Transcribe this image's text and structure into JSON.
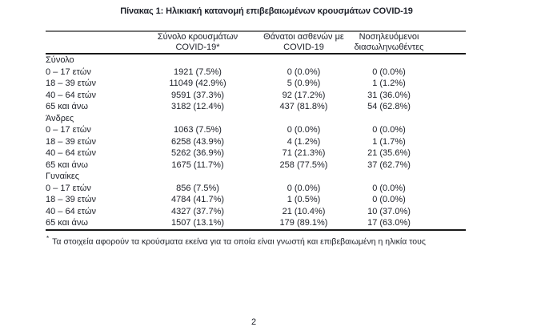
{
  "title": "Πίνακας 1: Ηλικιακή κατανομή επιβεβαιωμένων κρουσμάτων COVID-19",
  "colors": {
    "text": "#20232b",
    "rule_top": "#767676",
    "rule_black": "#1a1a1a",
    "background": "#ffffff"
  },
  "table": {
    "headers": [
      {
        "line1": "Σύνολο κρουσμάτων",
        "line2": "COVID-19*"
      },
      {
        "line1": "Θάνατοι ασθενών με",
        "line2": "COVID-19"
      },
      {
        "line1": "Νοσηλευόμενοι",
        "line2": "διασωληνωθέντες"
      }
    ],
    "groups": [
      {
        "label": "Σύνολο",
        "rows": [
          {
            "label": "0 – 17 ετών",
            "cases": "1921 (7.5%)",
            "deaths": "0 (0.0%)",
            "intubated": "0 (0.0%)"
          },
          {
            "label": "18 – 39 ετών",
            "cases": "11049 (42.9%)",
            "deaths": "5 (0.9%)",
            "intubated": "1 (1.2%)"
          },
          {
            "label": "40 – 64 ετών",
            "cases": "9591 (37.3%)",
            "deaths": "92 (17.2%)",
            "intubated": "31 (36.0%)"
          },
          {
            "label": "65 και άνω",
            "cases": "3182 (12.4%)",
            "deaths": "437 (81.8%)",
            "intubated": "54 (62.8%)"
          }
        ]
      },
      {
        "label": "Άνδρες",
        "rows": [
          {
            "label": "0 – 17 ετών",
            "cases": "1063 (7.5%)",
            "deaths": "0 (0.0%)",
            "intubated": "0 (0.0%)"
          },
          {
            "label": "18 – 39 ετών",
            "cases": "6258 (43.9%)",
            "deaths": "4 (1.2%)",
            "intubated": "1 (1.7%)"
          },
          {
            "label": "40 – 64 ετών",
            "cases": "5262 (36.9%)",
            "deaths": "71 (21.3%)",
            "intubated": "21 (35.6%)"
          },
          {
            "label": "65 και άνω",
            "cases": "1675 (11.7%)",
            "deaths": "258 (77.5%)",
            "intubated": "37 (62.7%)"
          }
        ]
      },
      {
        "label": "Γυναίκες",
        "rows": [
          {
            "label": "0 – 17 ετών",
            "cases": "856 (7.5%)",
            "deaths": "0 (0.0%)",
            "intubated": "0 (0.0%)"
          },
          {
            "label": "18 – 39 ετών",
            "cases": "4784 (41.7%)",
            "deaths": "1 (0.5%)",
            "intubated": "0 (0.0%)"
          },
          {
            "label": "40 – 64 ετών",
            "cases": "4327 (37.7%)",
            "deaths": "21 (10.4%)",
            "intubated": "10 (37.0%)"
          },
          {
            "label": "65 και άνω",
            "cases": "1507 (13.1%)",
            "deaths": "179 (89.1%)",
            "intubated": "17 (63.0%)"
          }
        ]
      }
    ]
  },
  "footnote": {
    "marker": "*",
    "text": "Τα στοιχεία αφορούν τα κρούσματα εκείνα για τα οποία είναι γνωστή και επιβεβαιωμένη η ηλικία τους"
  },
  "page_number": "2"
}
